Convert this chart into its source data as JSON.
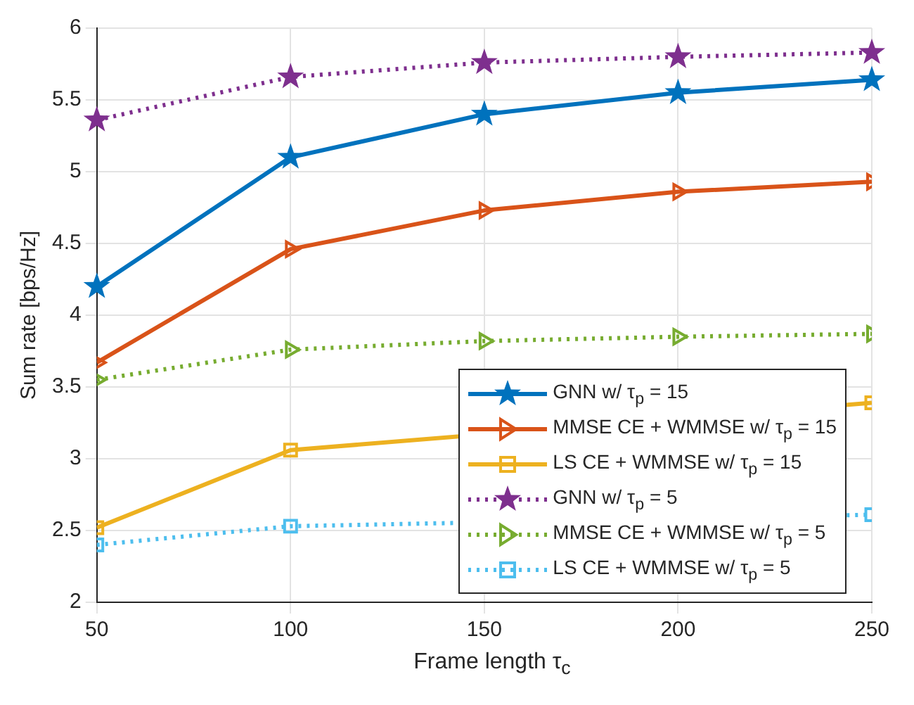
{
  "chart_data": {
    "type": "line",
    "xlabel": "Frame length τ$_{c}$",
    "ylabel": "Sum rate [bps/Hz]",
    "x": [
      50,
      100,
      150,
      200,
      250
    ],
    "xlim": [
      50,
      250
    ],
    "xticks": [
      50,
      100,
      150,
      200,
      250
    ],
    "ylim": [
      2,
      6
    ],
    "yticks": [
      2,
      2.5,
      3,
      3.5,
      4,
      4.5,
      5,
      5.5,
      6
    ],
    "grid": true,
    "legend": "bottom right",
    "series": [
      {
        "name": "GNN w/ τ$_{p}$ = 15",
        "color": "#0072bd",
        "marker": "star",
        "line_style": "solid",
        "values": [
          4.2,
          5.1,
          5.4,
          5.55,
          5.64
        ]
      },
      {
        "name": "MMSE CE + WMMSE w/ τ$_{p}$ = 15",
        "color": "#d95319",
        "marker": "triangle",
        "line_style": "solid",
        "values": [
          3.67,
          4.46,
          4.73,
          4.86,
          4.93
        ]
      },
      {
        "name": "LS CE + WMMSE w/ τ$_{p}$ = 15",
        "color": "#edb120",
        "marker": "square",
        "line_style": "solid",
        "values": [
          2.52,
          3.06,
          null,
          null,
          3.39
        ]
      },
      {
        "name": "GNN w/ τ$_{p}$ = 5",
        "color": "#7e2f8e",
        "marker": "star",
        "line_style": "dotted",
        "values": [
          5.36,
          5.66,
          5.76,
          5.8,
          5.83
        ]
      },
      {
        "name": "MMSE CE + WMMSE w/ τ$_{p}$ = 5",
        "color": "#77ac30",
        "marker": "triangle",
        "line_style": "dotted",
        "values": [
          3.55,
          3.76,
          3.82,
          3.85,
          3.87
        ]
      },
      {
        "name": "LS CE + WMMSE w/ τ$_{p}$ = 5",
        "color": "#4dbeee",
        "marker": "square",
        "line_style": "dotted",
        "values": [
          2.4,
          2.53,
          null,
          null,
          2.61
        ]
      }
    ]
  }
}
